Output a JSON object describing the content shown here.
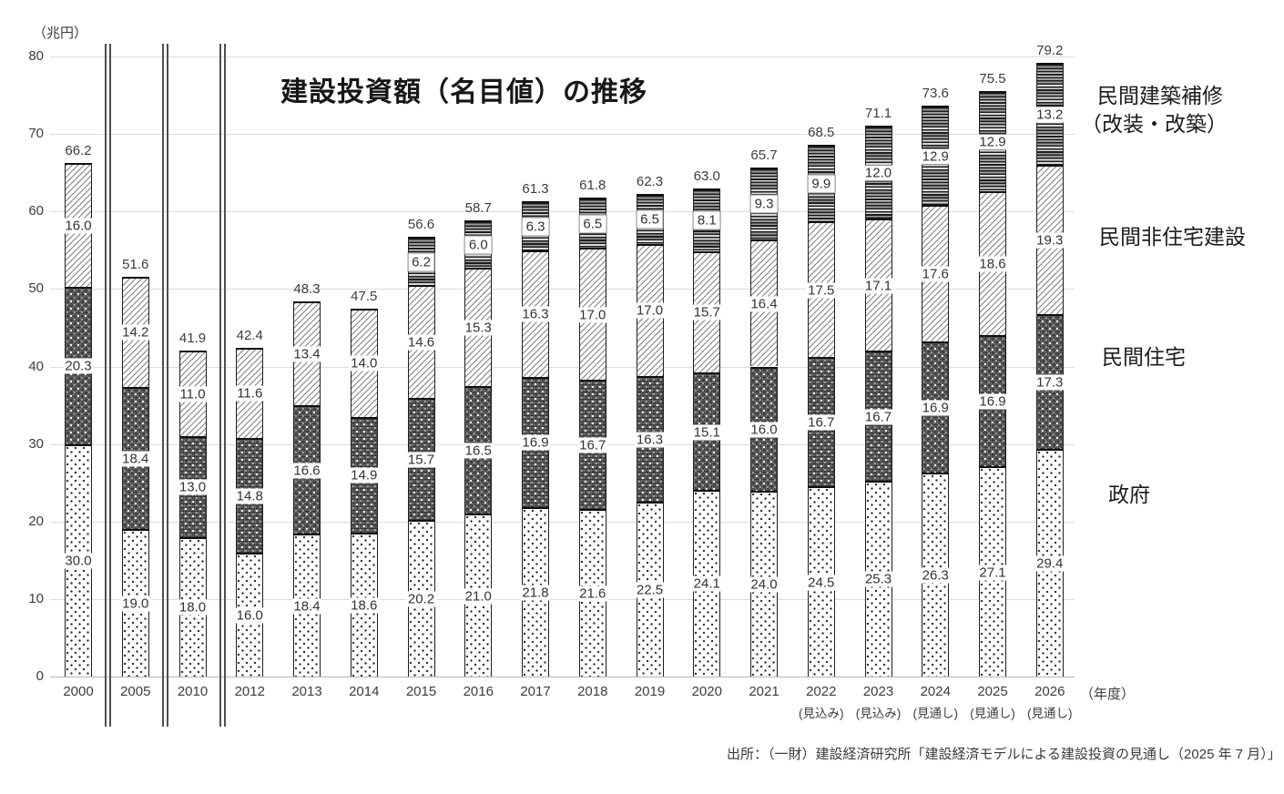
{
  "title": "建設投資額（名目値）の推移",
  "y_axis": {
    "unit_label": "（兆円）",
    "ticks": [
      0,
      10,
      20,
      30,
      40,
      50,
      60,
      70,
      80
    ]
  },
  "x_axis": {
    "unit_label": "（年度）"
  },
  "legend": {
    "repair_line1": "民間建築補修",
    "repair_line2": "（改装・改築）",
    "nonres": "民間非住宅建設",
    "house": "民間住宅",
    "gov": "政府"
  },
  "source": "出所：（一財）建設経済研究所「建設経済モデルによる建設投資の見通し（2025 年 7 月）」",
  "chart_data": {
    "type": "bar",
    "stacked": true,
    "title": "建設投資額（名目値）の推移",
    "ylabel": "（兆円）",
    "xlabel": "（年度）",
    "ylim": [
      0,
      80
    ],
    "grid": true,
    "legend_position": "right",
    "axis_breaks_after_categories": [
      "2000",
      "2005",
      "2010"
    ],
    "categories": [
      {
        "label": "2000",
        "sublabel": ""
      },
      {
        "label": "2005",
        "sublabel": ""
      },
      {
        "label": "2010",
        "sublabel": ""
      },
      {
        "label": "2012",
        "sublabel": ""
      },
      {
        "label": "2013",
        "sublabel": ""
      },
      {
        "label": "2014",
        "sublabel": ""
      },
      {
        "label": "2015",
        "sublabel": ""
      },
      {
        "label": "2016",
        "sublabel": ""
      },
      {
        "label": "2017",
        "sublabel": ""
      },
      {
        "label": "2018",
        "sublabel": ""
      },
      {
        "label": "2019",
        "sublabel": ""
      },
      {
        "label": "2020",
        "sublabel": ""
      },
      {
        "label": "2021",
        "sublabel": ""
      },
      {
        "label": "2022",
        "sublabel": "(見込み)"
      },
      {
        "label": "2023",
        "sublabel": "(見込み)"
      },
      {
        "label": "2024",
        "sublabel": "(見通し)"
      },
      {
        "label": "2025",
        "sublabel": "(見通し)"
      },
      {
        "label": "2026",
        "sublabel": "(見通し)"
      }
    ],
    "series": [
      {
        "key": "gov",
        "name": "政府",
        "values": [
          30.0,
          19.0,
          18.0,
          16.0,
          18.4,
          18.6,
          20.2,
          21.0,
          21.8,
          21.6,
          22.5,
          24.1,
          24.0,
          24.5,
          25.3,
          26.3,
          27.1,
          29.4
        ]
      },
      {
        "key": "house",
        "name": "民間住宅",
        "values": [
          20.3,
          18.4,
          13.0,
          14.8,
          16.6,
          14.9,
          15.7,
          16.5,
          16.9,
          16.7,
          16.3,
          15.1,
          16.0,
          16.7,
          16.7,
          16.9,
          16.9,
          17.3
        ]
      },
      {
        "key": "nonres",
        "name": "民間非住宅建設",
        "values": [
          16.0,
          14.2,
          11.0,
          11.6,
          13.4,
          14.0,
          14.6,
          15.3,
          16.3,
          17.0,
          17.0,
          15.7,
          16.4,
          17.5,
          17.1,
          17.6,
          18.6,
          19.3
        ]
      },
      {
        "key": "repair",
        "name": "民間建築補修（改装・改築）",
        "values": [
          null,
          null,
          null,
          null,
          null,
          null,
          6.2,
          6.0,
          6.3,
          6.5,
          6.5,
          8.1,
          9.3,
          9.9,
          12.0,
          12.9,
          12.9,
          13.2
        ]
      }
    ],
    "totals": [
      66.2,
      51.6,
      41.9,
      42.4,
      48.3,
      47.5,
      56.6,
      58.7,
      61.3,
      61.8,
      62.3,
      63.0,
      65.7,
      68.5,
      71.1,
      73.6,
      75.5,
      79.2
    ]
  }
}
